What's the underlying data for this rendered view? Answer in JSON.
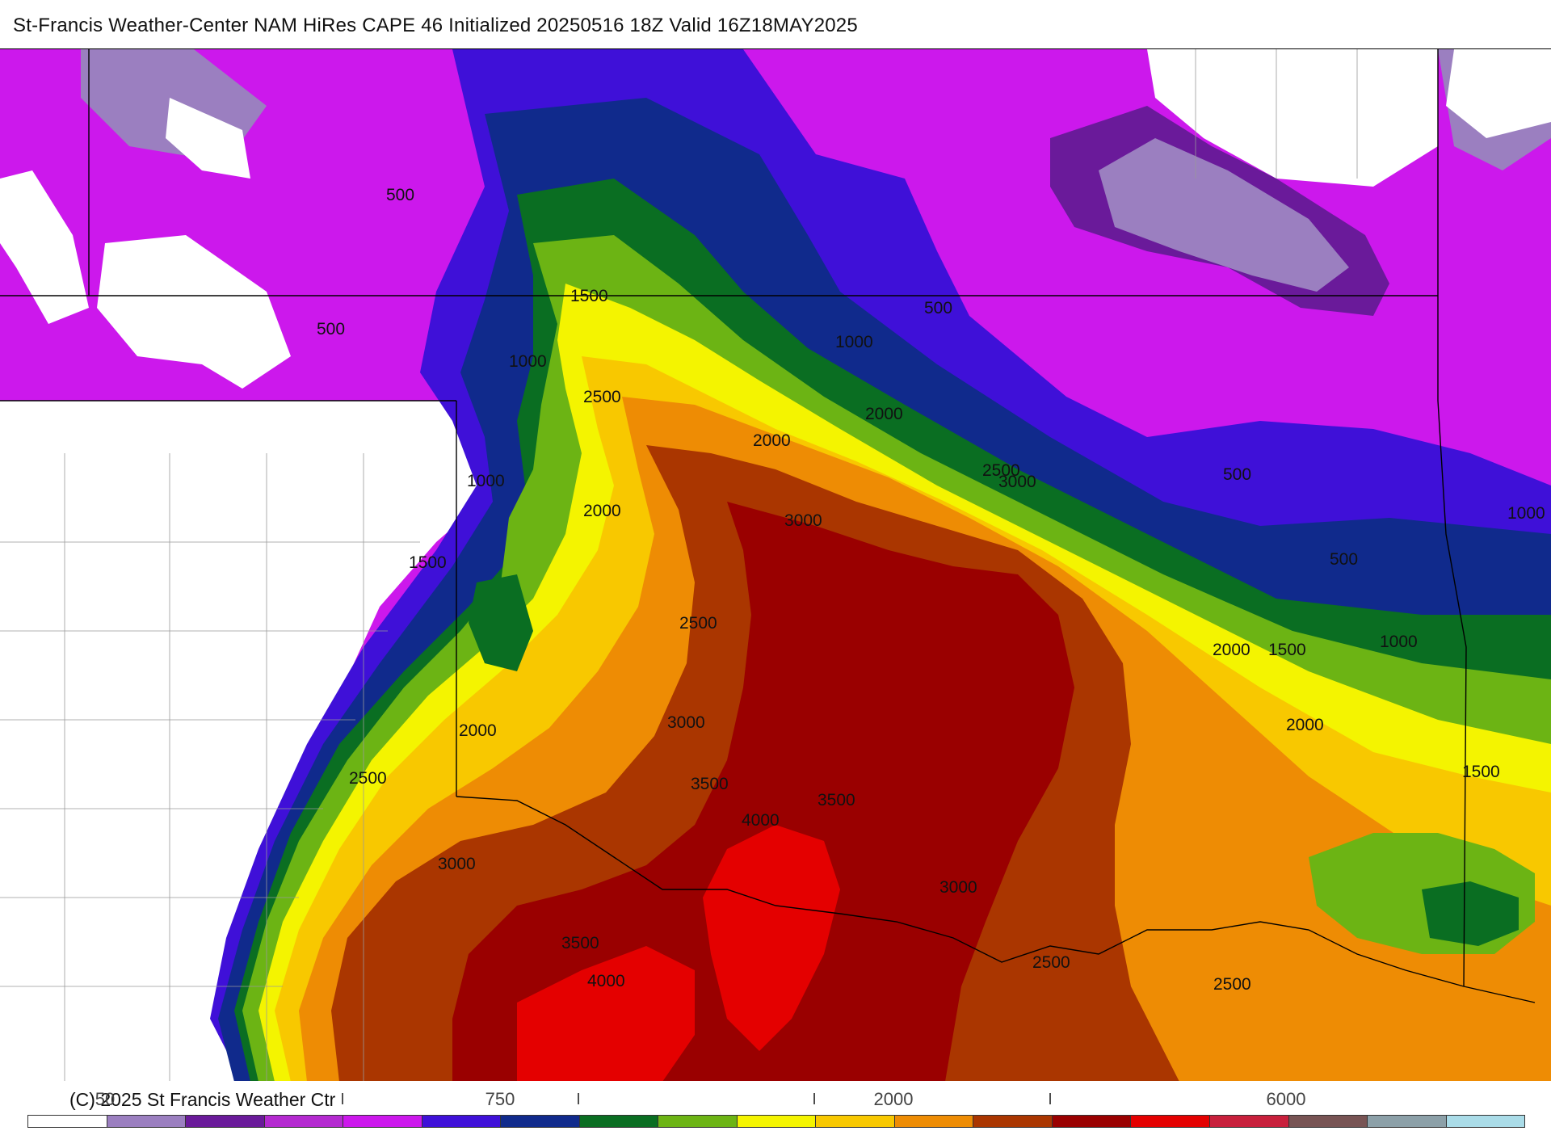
{
  "title": "St-Francis Weather-Center NAM HiRes CAPE  46 Initialized 20250516 18Z Valid 16Z18MAY2025",
  "copyright": "(C) 2025 St Francis Weather Ctr",
  "colors": {
    "c0": "#ffffff",
    "c50": "#9b7fc0",
    "c100": "#6a1a9a",
    "c250": "#b42ad0",
    "c500": "#cc18ec",
    "c750": "#3f10d8",
    "c1000": "#102a8c",
    "c1250": "#0a6e22",
    "c1500": "#6cb414",
    "c1750": "#f4f400",
    "c2000": "#f8c800",
    "c2500": "#ee8c04",
    "c3000": "#aa3600",
    "c3500": "#9a0000",
    "c4000": "#e40000",
    "c5000": "#c8203c",
    "c6000": "#785454",
    "c7000": "#8ca0a8",
    "c8000": "#aadce8"
  },
  "legend": {
    "scale_labels": [
      {
        "text": "50",
        "key": "c50"
      },
      {
        "text": "750",
        "key": "c750"
      },
      {
        "text": "2000",
        "key": "c2000"
      },
      {
        "text": "6000",
        "key": "c6000"
      }
    ],
    "tick_marks": [
      "I",
      "I",
      "I",
      "I"
    ],
    "swatches": [
      "c0",
      "c50",
      "c100",
      "c250",
      "c500",
      "c750",
      "c1000",
      "c1250",
      "c1500",
      "c1750",
      "c2000",
      "c2500",
      "c3000",
      "c3500",
      "c4000",
      "c5000",
      "c6000",
      "c7000",
      "c8000"
    ]
  },
  "contour_labels": [
    {
      "text": "500"
    },
    {
      "text": "500"
    },
    {
      "text": "500"
    },
    {
      "text": "500"
    },
    {
      "text": "500"
    },
    {
      "text": "1000"
    },
    {
      "text": "1000"
    },
    {
      "text": "1000"
    },
    {
      "text": "1000"
    },
    {
      "text": "1000"
    },
    {
      "text": "1500"
    },
    {
      "text": "1500"
    },
    {
      "text": "1500"
    },
    {
      "text": "1500"
    },
    {
      "text": "2000"
    },
    {
      "text": "2000"
    },
    {
      "text": "2000"
    },
    {
      "text": "2000"
    },
    {
      "text": "2000"
    },
    {
      "text": "2000"
    },
    {
      "text": "2500"
    },
    {
      "text": "2500"
    },
    {
      "text": "2500"
    },
    {
      "text": "2500"
    },
    {
      "text": "2500"
    },
    {
      "text": "2500"
    },
    {
      "text": "3000"
    },
    {
      "text": "3000"
    },
    {
      "text": "3000"
    },
    {
      "text": "3000"
    },
    {
      "text": "3000"
    },
    {
      "text": "3500"
    },
    {
      "text": "3500"
    },
    {
      "text": "3500"
    },
    {
      "text": "4000"
    },
    {
      "text": "4000"
    }
  ]
}
